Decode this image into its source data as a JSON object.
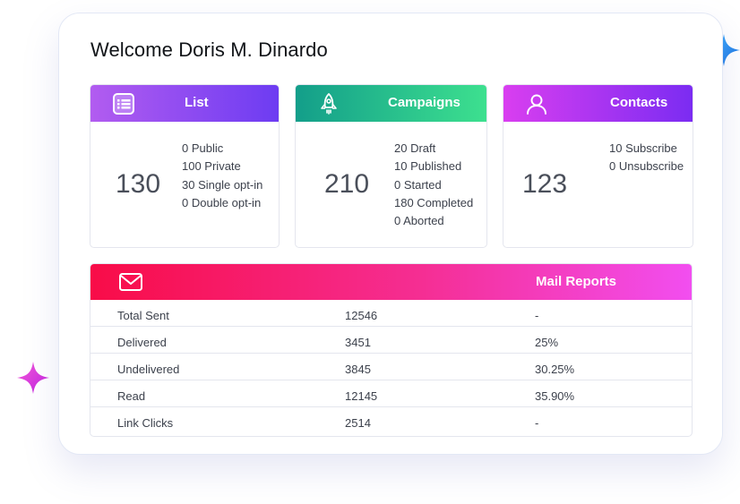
{
  "welcome": "Welcome Doris M. Dinardo",
  "list": {
    "title": "List",
    "count": "130",
    "details": [
      "0 Public",
      "100 Private",
      "30 Single opt-in",
      "0 Double opt-in"
    ]
  },
  "campaigns": {
    "title": "Campaigns",
    "count": "210",
    "details": [
      "20 Draft",
      "10 Published",
      "0 Started",
      "180 Completed",
      "0 Aborted"
    ]
  },
  "contacts": {
    "title": "Contacts",
    "count": "123",
    "details": [
      "10 Subscribe",
      "0 Unsubscribe"
    ]
  },
  "mail_reports": {
    "title": "Mail Reports",
    "rows": [
      {
        "label": "Total Sent",
        "value": "12546",
        "percent": "-"
      },
      {
        "label": "Delivered",
        "value": "3451",
        "percent": "25%"
      },
      {
        "label": "Undelivered",
        "value": "3845",
        "percent": "30.25%"
      },
      {
        "label": "Read",
        "value": "12145",
        "percent": "35.90%"
      },
      {
        "label": "Link Clicks",
        "value": "2514",
        "percent": "-"
      }
    ]
  },
  "icons": {
    "list": "list-icon",
    "campaigns": "rocket-icon",
    "contacts": "user-icon",
    "mail": "envelope-icon",
    "sparkles": "sparkle-icon"
  },
  "colors": {
    "list_gradient": [
      "#b25cf0",
      "#6d3cf2"
    ],
    "campaigns_gradient": [
      "#139e8a",
      "#3de08f"
    ],
    "contacts_gradient": [
      "#d93ef0",
      "#7b2cf2"
    ],
    "mail_gradient": [
      "#f80c48",
      "#f24ef0"
    ],
    "sparkle_blue": "#2c8fe0",
    "sparkle_pink": "#e23fd8"
  }
}
